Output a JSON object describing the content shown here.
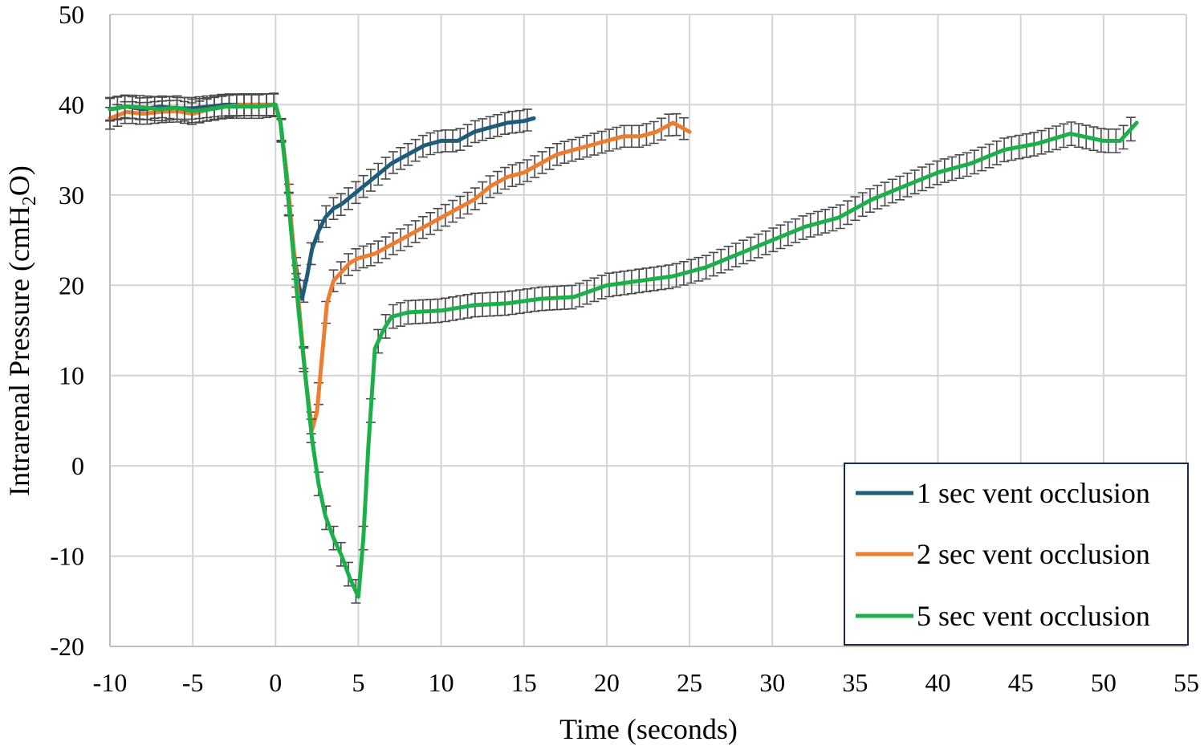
{
  "chart_data": {
    "type": "line",
    "title": "",
    "xlabel": "Time (seconds)",
    "ylabel_parts": [
      "Intrarenal Pressure (cmH",
      "2",
      "O)"
    ],
    "xlim": [
      -10,
      55
    ],
    "ylim": [
      -20,
      50
    ],
    "x_ticks": [
      "-10",
      "-5",
      "0",
      "5",
      "10",
      "15",
      "20",
      "25",
      "30",
      "35",
      "40",
      "45",
      "50",
      "55"
    ],
    "y_ticks": [
      "-20",
      "-10",
      "0",
      "10",
      "20",
      "30",
      "40",
      "50"
    ],
    "grid": true,
    "legend_position": "bottom-right",
    "series": [
      {
        "name": "1 sec vent occlusion",
        "color": "#1f5b7a",
        "error_bar": 1.2,
        "points": [
          [
            -10,
            39.5
          ],
          [
            -9,
            39.8
          ],
          [
            -8,
            39.5
          ],
          [
            -7,
            39.8
          ],
          [
            -6,
            39.6
          ],
          [
            -5,
            39.6
          ],
          [
            -4,
            39.8
          ],
          [
            -3,
            40
          ],
          [
            -2,
            40
          ],
          [
            -1,
            40
          ],
          [
            0,
            40
          ],
          [
            0.3,
            38
          ],
          [
            0.6,
            33
          ],
          [
            1,
            25
          ],
          [
            1.4,
            20
          ],
          [
            1.6,
            18.5
          ],
          [
            1.9,
            21
          ],
          [
            2.2,
            24
          ],
          [
            2.6,
            26
          ],
          [
            3,
            27.5
          ],
          [
            3.5,
            28.5
          ],
          [
            4,
            29
          ],
          [
            5,
            30.5
          ],
          [
            6,
            32
          ],
          [
            7,
            33.5
          ],
          [
            8,
            34.5
          ],
          [
            9,
            35.5
          ],
          [
            10,
            36
          ],
          [
            11,
            36
          ],
          [
            12,
            37
          ],
          [
            13,
            37.5
          ],
          [
            14,
            38
          ],
          [
            15,
            38.2
          ],
          [
            15.6,
            38.5
          ]
        ]
      },
      {
        "name": "2 sec vent occlusion",
        "color": "#ed7d31",
        "error_bar": 1.2,
        "points": [
          [
            -10,
            38.5
          ],
          [
            -9,
            39.2
          ],
          [
            -8,
            39
          ],
          [
            -7,
            39.2
          ],
          [
            -6,
            39.3
          ],
          [
            -5,
            39
          ],
          [
            -4,
            39.5
          ],
          [
            -3,
            39.8
          ],
          [
            -2,
            40
          ],
          [
            -1,
            40
          ],
          [
            0,
            40
          ],
          [
            0.3,
            38
          ],
          [
            0.7,
            32
          ],
          [
            1,
            26
          ],
          [
            1.4,
            18
          ],
          [
            1.8,
            10
          ],
          [
            2.2,
            4
          ],
          [
            2.5,
            6
          ],
          [
            2.8,
            12
          ],
          [
            3.1,
            18
          ],
          [
            3.5,
            20.5
          ],
          [
            4,
            21.5
          ],
          [
            4.5,
            22.5
          ],
          [
            5,
            23
          ],
          [
            6,
            23.5
          ],
          [
            7,
            24.5
          ],
          [
            8,
            25.5
          ],
          [
            9,
            26.5
          ],
          [
            10,
            27.5
          ],
          [
            11,
            28.5
          ],
          [
            12,
            29.5
          ],
          [
            13,
            31
          ],
          [
            14,
            32
          ],
          [
            15,
            32.5
          ],
          [
            16,
            33.5
          ],
          [
            17,
            34.5
          ],
          [
            18,
            35
          ],
          [
            19,
            35.5
          ],
          [
            20,
            36
          ],
          [
            21,
            36.5
          ],
          [
            22,
            36.5
          ],
          [
            23,
            37
          ],
          [
            24,
            38
          ],
          [
            24.5,
            37.5
          ],
          [
            25,
            37
          ]
        ]
      },
      {
        "name": "5 sec vent occlusion",
        "color": "#1cb04a",
        "error_bar": 1.3,
        "points": [
          [
            -10,
            39.5
          ],
          [
            -9,
            39.8
          ],
          [
            -8,
            39.7
          ],
          [
            -7,
            39.5
          ],
          [
            -6,
            39.7
          ],
          [
            -5,
            39.3
          ],
          [
            -4,
            39.5
          ],
          [
            -3,
            39.8
          ],
          [
            -2,
            39.8
          ],
          [
            -1,
            39.8
          ],
          [
            0,
            40
          ],
          [
            0.3,
            38
          ],
          [
            0.6,
            33
          ],
          [
            1,
            25
          ],
          [
            1.4,
            17
          ],
          [
            1.8,
            10
          ],
          [
            2.2,
            3
          ],
          [
            2.6,
            -2
          ],
          [
            3,
            -5.5
          ],
          [
            3.5,
            -8
          ],
          [
            4,
            -10
          ],
          [
            4.5,
            -12.5
          ],
          [
            5,
            -14.5
          ],
          [
            5.3,
            -8
          ],
          [
            5.6,
            2
          ],
          [
            6,
            13
          ],
          [
            6.5,
            15
          ],
          [
            7,
            16.5
          ],
          [
            8,
            17
          ],
          [
            10,
            17.2
          ],
          [
            12,
            17.8
          ],
          [
            14,
            18
          ],
          [
            16,
            18.5
          ],
          [
            18,
            18.7
          ],
          [
            20,
            20
          ],
          [
            22,
            20.5
          ],
          [
            24,
            21
          ],
          [
            26,
            22
          ],
          [
            28,
            23.5
          ],
          [
            30,
            25
          ],
          [
            32,
            26.5
          ],
          [
            34,
            27.5
          ],
          [
            36,
            29.5
          ],
          [
            38,
            31
          ],
          [
            40,
            32.5
          ],
          [
            42,
            33.5
          ],
          [
            44,
            35
          ],
          [
            46,
            35.7
          ],
          [
            48,
            36.8
          ],
          [
            50,
            36
          ],
          [
            51,
            36
          ],
          [
            51.5,
            37
          ],
          [
            52,
            38
          ]
        ]
      }
    ]
  }
}
